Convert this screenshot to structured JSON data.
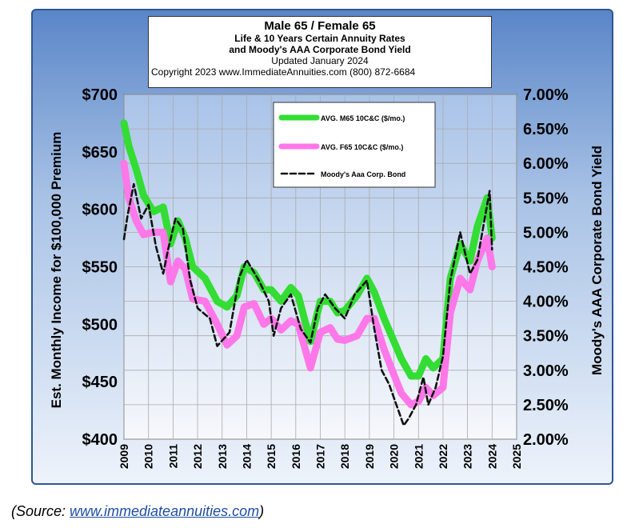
{
  "chart_data": {
    "type": "line",
    "title_lines": [
      "Male 65 / Female 65",
      "Life & 10 Years Certain Annuity Rates",
      "and Moody's AAA Corporate Bond Yield",
      "Updated January 2024",
      "Copyright 2023   www.ImmediateAnnuities.com   (800) 872-6684"
    ],
    "ylabel": "Est. Monthly Income for $100,000 Premium",
    "y2label": "Moody's AAA Corporate Bond Yield",
    "ylim": [
      400,
      700
    ],
    "y2lim": [
      2.0,
      7.0
    ],
    "xlim": [
      2009,
      2025
    ],
    "y_ticks": [
      "$400",
      "$450",
      "$500",
      "$550",
      "$600",
      "$650",
      "$700"
    ],
    "y2_ticks": [
      "2.00%",
      "2.50%",
      "3.00%",
      "3.50%",
      "4.00%",
      "4.50%",
      "5.00%",
      "5.50%",
      "6.00%",
      "6.50%",
      "7.00%"
    ],
    "x_ticks": [
      "2009",
      "2010",
      "2011",
      "2012",
      "2013",
      "2014",
      "2015",
      "2016",
      "2017",
      "2018",
      "2019",
      "2020",
      "2021",
      "2022",
      "2023",
      "2024",
      "2025"
    ],
    "grid": true,
    "legend_position": "top-center",
    "series": [
      {
        "name": "AVG. M65 10C&C ($/mo.)",
        "color": "#33dd33",
        "axis": "left",
        "x": [
          2009.0,
          2009.2,
          2009.5,
          2009.8,
          2010.2,
          2010.6,
          2010.9,
          2011.2,
          2011.5,
          2011.8,
          2012.3,
          2012.8,
          2013.2,
          2013.6,
          2013.9,
          2014.3,
          2014.7,
          2015.0,
          2015.4,
          2015.8,
          2016.1,
          2016.6,
          2017.0,
          2017.4,
          2017.7,
          2018.0,
          2018.5,
          2018.9,
          2019.2,
          2019.6,
          2020.0,
          2020.3,
          2020.7,
          2021.0,
          2021.3,
          2021.6,
          2022.0,
          2022.3,
          2022.7,
          2023.1,
          2023.4,
          2023.8,
          2024.0
        ],
        "values": [
          675,
          655,
          635,
          612,
          598,
          602,
          570,
          590,
          575,
          550,
          540,
          520,
          515,
          525,
          550,
          545,
          530,
          530,
          520,
          532,
          525,
          485,
          520,
          520,
          510,
          512,
          525,
          540,
          528,
          505,
          485,
          470,
          455,
          455,
          470,
          462,
          470,
          540,
          570,
          555,
          585,
          610,
          575
        ]
      },
      {
        "name": "AVG. F65 10C&C ($/mo.)",
        "color": "#ff77e8",
        "axis": "left",
        "x": [
          2009.0,
          2009.2,
          2009.5,
          2009.8,
          2010.2,
          2010.6,
          2010.9,
          2011.2,
          2011.5,
          2011.8,
          2012.3,
          2012.8,
          2013.2,
          2013.6,
          2013.9,
          2014.3,
          2014.7,
          2015.0,
          2015.4,
          2015.8,
          2016.1,
          2016.6,
          2017.0,
          2017.4,
          2017.7,
          2018.0,
          2018.5,
          2018.9,
          2019.2,
          2019.6,
          2020.0,
          2020.3,
          2020.7,
          2021.0,
          2021.3,
          2021.6,
          2022.0,
          2022.3,
          2022.7,
          2023.1,
          2023.4,
          2023.8,
          2024.0
        ],
        "values": [
          640,
          610,
          590,
          578,
          580,
          580,
          537,
          555,
          548,
          522,
          520,
          500,
          482,
          490,
          515,
          518,
          500,
          505,
          495,
          503,
          500,
          462,
          493,
          497,
          487,
          486,
          490,
          505,
          505,
          478,
          456,
          440,
          430,
          433,
          445,
          438,
          445,
          510,
          540,
          530,
          555,
          575,
          550
        ]
      },
      {
        "name": "Moody's Aaa Corp. Bond",
        "color": "#111111",
        "axis": "right",
        "x": [
          2009.0,
          2009.15,
          2009.4,
          2009.7,
          2010.0,
          2010.3,
          2010.6,
          2010.8,
          2011.1,
          2011.4,
          2011.7,
          2012.0,
          2012.5,
          2012.8,
          2013.3,
          2013.7,
          2014.0,
          2014.5,
          2014.9,
          2015.1,
          2015.4,
          2015.8,
          2016.2,
          2016.6,
          2016.9,
          2017.2,
          2017.6,
          2018.0,
          2018.4,
          2018.9,
          2019.2,
          2019.5,
          2019.8,
          2020.1,
          2020.4,
          2020.6,
          2020.9,
          2021.2,
          2021.4,
          2021.7,
          2022.0,
          2022.3,
          2022.7,
          2023.1,
          2023.4,
          2023.7,
          2023.9,
          2024.0
        ],
        "values": [
          4.9,
          5.25,
          5.7,
          5.2,
          5.4,
          4.8,
          4.4,
          4.75,
          5.2,
          5.05,
          4.3,
          3.9,
          3.75,
          3.35,
          3.55,
          4.35,
          4.6,
          4.3,
          4.0,
          3.5,
          3.9,
          4.1,
          3.6,
          3.4,
          3.9,
          4.1,
          3.9,
          3.75,
          4.1,
          4.3,
          3.6,
          3.0,
          2.8,
          2.5,
          2.2,
          2.3,
          2.5,
          2.9,
          2.5,
          2.75,
          3.2,
          4.3,
          5.0,
          4.4,
          4.6,
          5.2,
          5.6,
          4.75
        ]
      }
    ]
  },
  "source_label": "(Source: ",
  "source_link": "www.immediateannuities.com",
  "source_close": ")"
}
